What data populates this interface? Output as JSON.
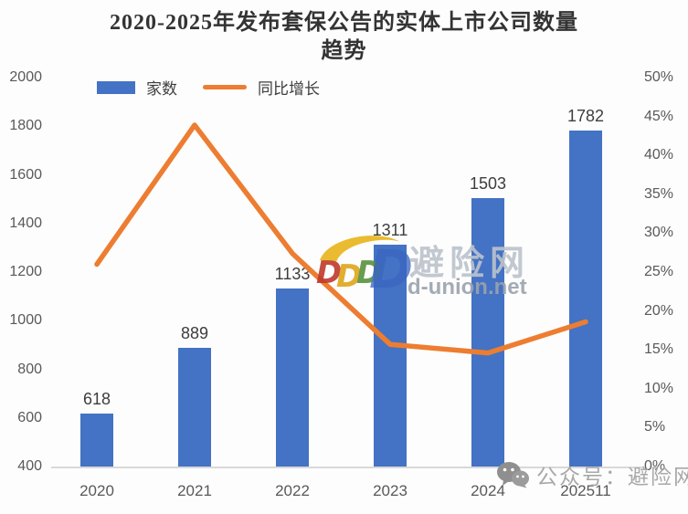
{
  "title": {
    "line1": "2020-2025年发布套保公告的实体上市公司数量",
    "line2": "趋势"
  },
  "legend": [
    {
      "label": "家数",
      "type": "bar",
      "color": "#4472C4"
    },
    {
      "label": "同比增长",
      "type": "line",
      "color": "#ED7D31"
    }
  ],
  "chart_data": {
    "type": "combo_bar_line",
    "title": "2020-2025年发布套保公告的实体上市公司数量趋势",
    "categories": [
      "2020",
      "2021",
      "2022",
      "2023",
      "2024",
      "202511"
    ],
    "series": [
      {
        "name": "家数",
        "type": "bar",
        "axis": "left",
        "color": "#4472C4",
        "values": [
          618,
          889,
          1133,
          1311,
          1503,
          1782
        ]
      },
      {
        "name": "同比增长",
        "type": "line",
        "axis": "right",
        "color": "#ED7D31",
        "values_percent": [
          26,
          43.9,
          27.4,
          15.7,
          14.6,
          18.6
        ]
      }
    ],
    "left_axis": {
      "min": 400,
      "max": 2000,
      "step": 200,
      "ticks": [
        "2000",
        "1800",
        "1600",
        "1400",
        "1200",
        "1000",
        "800",
        "600",
        "400"
      ]
    },
    "right_axis": {
      "min_percent": 0,
      "max_percent": 50,
      "step_percent": 5,
      "ticks": [
        "50%",
        "45%",
        "40%",
        "35%",
        "30%",
        "25%",
        "20%",
        "15%",
        "10%",
        "5%",
        "0%"
      ]
    },
    "grid": false,
    "legend_position": "top-left",
    "data_labels_shown": true
  },
  "watermark": {
    "brand": "避险网",
    "url": "d-union.net",
    "logo_marks": [
      {
        "char": "D",
        "color": "#c0392b"
      },
      {
        "char": "D",
        "color": "#dfa61c"
      },
      {
        "char": "D",
        "color": "#58923e"
      },
      {
        "char": "D",
        "color": "#3a66c0"
      }
    ],
    "swoosh_color": "#e8b31a"
  },
  "overlay": {
    "wechat_label": "公众号：避险网"
  },
  "colors": {
    "bar": "#4472C4",
    "line": "#ED7D31",
    "axis_text": "#595959",
    "label_text": "#3d3d3d"
  }
}
